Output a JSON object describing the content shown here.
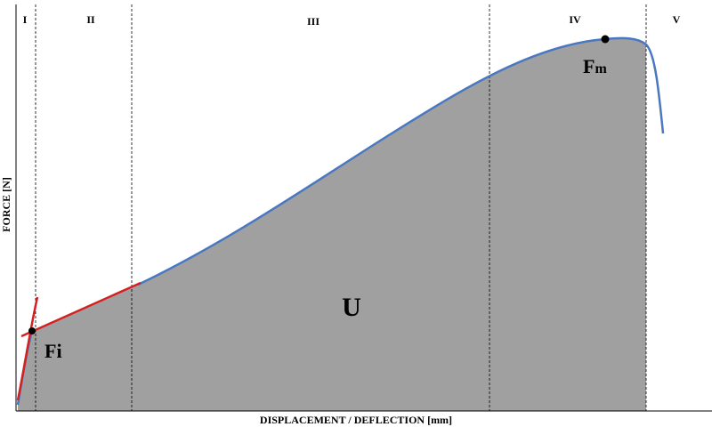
{
  "axes": {
    "x_label": "DISPLACEMENT / DEFLECTION [mm]",
    "y_label": "FORCE [N]"
  },
  "regions": [
    "I",
    "II",
    "III",
    "IV",
    "V"
  ],
  "area_label": "U",
  "points": [
    {
      "text": "F",
      "subscript": "i"
    },
    {
      "text": "F",
      "subscript": "m"
    }
  ]
}
